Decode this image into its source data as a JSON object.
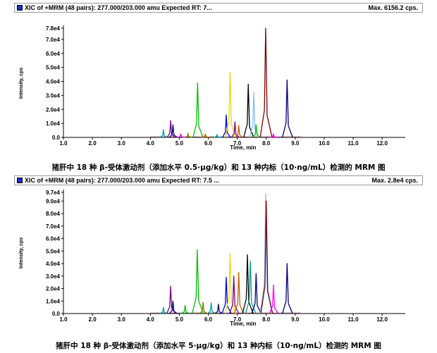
{
  "chart_data": [
    {
      "type": "line",
      "header_text": "XIC of +MRM (48 pairs): 277.000/203.000 amu Expected RT: 7...",
      "max_text": "Max. 6156.2 cps.",
      "xlabel": "Time, min",
      "ylabel": "Intensity, cps",
      "xlim": [
        1.0,
        12.8
      ],
      "ylim": [
        0,
        78000
      ],
      "x_ticks": [
        "1.0",
        "2.0",
        "3.0",
        "4.0",
        "5.0",
        "6.0",
        "7.0",
        "8.0",
        "9.0",
        "10.0",
        "11.0",
        "12.0"
      ],
      "y_ticks": [
        {
          "value": 0,
          "label": "0.0"
        },
        {
          "value": 10000,
          "label": "1.0e4"
        },
        {
          "value": 20000,
          "label": "2.0e4"
        },
        {
          "value": 30000,
          "label": "3.0e4"
        },
        {
          "value": 40000,
          "label": "4.0e4"
        },
        {
          "value": 50000,
          "label": "5.0e4"
        },
        {
          "value": 60000,
          "label": "6.0e4"
        },
        {
          "value": 70000,
          "label": "7.0e4"
        },
        {
          "value": 78000,
          "label": "7.8e4"
        }
      ],
      "peaks": [
        {
          "rt": 4.45,
          "height": 5500,
          "color": "#00a0a0"
        },
        {
          "rt": 4.7,
          "height": 12000,
          "color": "#800080"
        },
        {
          "rt": 4.78,
          "height": 9000,
          "color": "#000080"
        },
        {
          "rt": 5.05,
          "height": 2500,
          "color": "#ff00ff"
        },
        {
          "rt": 5.3,
          "height": 3000,
          "color": "#808000"
        },
        {
          "rt": 5.63,
          "height": 39000,
          "color": "#00c000"
        },
        {
          "rt": 5.9,
          "height": 2500,
          "color": "#c06000"
        },
        {
          "rt": 6.3,
          "height": 2000,
          "color": "#00a0a0"
        },
        {
          "rt": 6.62,
          "height": 16000,
          "color": "#0000ff"
        },
        {
          "rt": 6.75,
          "height": 46500,
          "color": "#e0e000"
        },
        {
          "rt": 6.92,
          "height": 11000,
          "color": "#800080"
        },
        {
          "rt": 7.05,
          "height": 8500,
          "color": "#c06000"
        },
        {
          "rt": 7.38,
          "height": 38000,
          "color": "#000000"
        },
        {
          "rt": 7.57,
          "height": 32000,
          "color": "#80c0ff"
        },
        {
          "rt": 7.65,
          "height": 9000,
          "color": "#00c000"
        },
        {
          "rt": 7.98,
          "height": 78000,
          "color": "#800000"
        },
        {
          "rt": 8.25,
          "height": 2500,
          "color": "#ff00ff"
        },
        {
          "rt": 8.72,
          "height": 41000,
          "color": "#000080"
        }
      ],
      "caption": "猪肝中 18 种 β-受体激动剂（添加水平 0.5·μg/kg）和 13 种内标（10·ng/mL）检测的 MRM 图"
    },
    {
      "type": "line",
      "header_text": "XIC of +MRM (48 pairs): 277.000/203.000 amu Expected RT: 7.5 ...",
      "max_text": "Max. 2.8e4 cps.",
      "xlabel": "Time, min",
      "ylabel": "Intensity, cps",
      "xlim": [
        1.0,
        12.8
      ],
      "ylim": [
        0,
        97000
      ],
      "x_ticks": [
        "1.0",
        "2.0",
        "3.0",
        "4.0",
        "5.0",
        "6.0",
        "7.0",
        "8.0",
        "9.0",
        "10.0",
        "11.0",
        "12.0"
      ],
      "y_ticks": [
        {
          "value": 0,
          "label": "0.0"
        },
        {
          "value": 10000,
          "label": "1.0e4"
        },
        {
          "value": 20000,
          "label": "2.0e4"
        },
        {
          "value": 30000,
          "label": "3.0e4"
        },
        {
          "value": 40000,
          "label": "4.0e4"
        },
        {
          "value": 50000,
          "label": "5.0e4"
        },
        {
          "value": 60000,
          "label": "6.0e4"
        },
        {
          "value": 70000,
          "label": "7.0e4"
        },
        {
          "value": 80000,
          "label": "8.0e4"
        },
        {
          "value": 90000,
          "label": "9.0e4"
        },
        {
          "value": 97000,
          "label": "9.7e4"
        }
      ],
      "peaks": [
        {
          "rt": 4.45,
          "height": 5000,
          "color": "#00a0a0"
        },
        {
          "rt": 4.7,
          "height": 22000,
          "color": "#800080"
        },
        {
          "rt": 4.78,
          "height": 10000,
          "color": "#000080"
        },
        {
          "rt": 5.2,
          "height": 6500,
          "color": "#00c000"
        },
        {
          "rt": 5.62,
          "height": 51000,
          "color": "#00c000"
        },
        {
          "rt": 5.82,
          "height": 9000,
          "color": "#808000"
        },
        {
          "rt": 6.1,
          "height": 8500,
          "color": "#00a0a0"
        },
        {
          "rt": 6.35,
          "height": 7500,
          "color": "#000080"
        },
        {
          "rt": 6.62,
          "height": 29000,
          "color": "#0000ff"
        },
        {
          "rt": 6.75,
          "height": 48000,
          "color": "#e0e000"
        },
        {
          "rt": 6.88,
          "height": 30000,
          "color": "#800080"
        },
        {
          "rt": 7.05,
          "height": 33000,
          "color": "#c06000"
        },
        {
          "rt": 7.35,
          "height": 47000,
          "color": "#000000"
        },
        {
          "rt": 7.45,
          "height": 42000,
          "color": "#00a0a0"
        },
        {
          "rt": 7.65,
          "height": 32000,
          "color": "#000080"
        },
        {
          "rt": 7.98,
          "height": 96000,
          "color": "#80c0ff"
        },
        {
          "rt": 8.0,
          "height": 90000,
          "color": "#800000"
        },
        {
          "rt": 8.25,
          "height": 23000,
          "color": "#ff00ff"
        },
        {
          "rt": 8.72,
          "height": 40000,
          "color": "#000080"
        }
      ],
      "caption": "猪肝中 18 种 β-受体激动剂（添加水平 5·μg/kg）和 13 种内标（10·ng/mL）检测的 MRM 图"
    }
  ]
}
